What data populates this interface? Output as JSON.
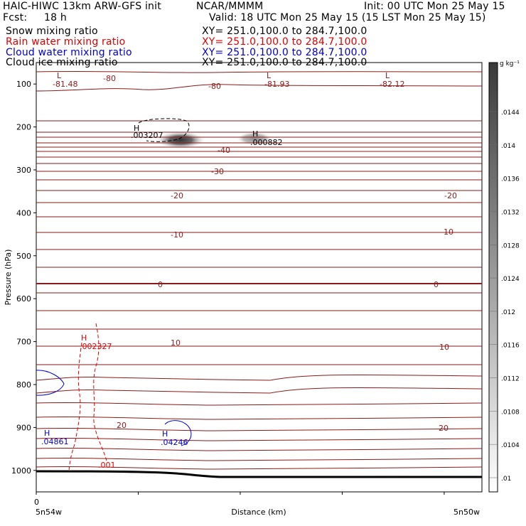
{
  "header": {
    "model": "HAIC-HIWC 13km ARW-GFS init",
    "org": "NCAR/MMMM",
    "init": "Init: 00 UTC Mon 25 May 15",
    "fcst_label": "Fcst:",
    "fcst_value": "18 h",
    "valid": "Valid: 18 UTC Mon 25 May 15 (15 LST Mon 25 May 15)"
  },
  "fields": [
    {
      "label": "Snow mixing ratio",
      "xy": "XY= 251.0,100.0 to 284.7,100.0",
      "color": "#000000"
    },
    {
      "label": "Rain water mixing ratio",
      "xy": "XY= 251.0,100.0 to 284.7,100.0",
      "color": "#e00000"
    },
    {
      "label": "Cloud water mixing ratio",
      "xy": "XY= 251.0,100.0 to 284.7,100.0",
      "color": "#0000cc"
    },
    {
      "label": "Cloud ice mixing ratio",
      "xy": "XY= 251.0,100.0 to 284.7,100.0",
      "color": "#000000"
    }
  ],
  "chart_data": {
    "type": "contour",
    "ylabel": "Pressure (hPa)",
    "xlabel": "Distance (km)",
    "y_ticks": [
      100,
      200,
      300,
      400,
      500,
      600,
      700,
      800,
      900,
      1000
    ],
    "x_tick_label": "0",
    "x_left_label": "5n54w",
    "x_right_label": "5n50w",
    "y_range": [
      50,
      1050
    ],
    "shading": {
      "unit": "g kg⁻¹",
      "levels": [
        ".01",
        ".0104",
        ".0108",
        ".0112",
        ".0116",
        ".012",
        ".0124",
        ".0128",
        ".0132",
        ".0136",
        ".014",
        ".0144"
      ]
    },
    "temperature_labels": [
      "-80",
      "-80",
      "-40",
      "-30",
      "-20",
      "-20",
      "-10",
      "-10",
      "0",
      "0",
      "10",
      "10",
      "20",
      "20"
    ],
    "extrema": [
      {
        "type": "L",
        "value": "-81.48"
      },
      {
        "type": "L",
        "value": "-81.93"
      },
      {
        "type": "L",
        "value": "-82.12"
      },
      {
        "type": "H",
        "value": ".003207"
      },
      {
        "type": "H",
        "value": ".000882"
      },
      {
        "type": "H",
        "value": ".002327"
      },
      {
        "type": "H",
        "value": ".04861"
      },
      {
        "type": "H",
        "value": ".04246"
      }
    ],
    "rain_contour_label": ".001",
    "colors": {
      "temperature": "#8b1a1a",
      "rain": "#e00000",
      "cloud_water": "#0000cc",
      "ground": "#000000"
    }
  }
}
